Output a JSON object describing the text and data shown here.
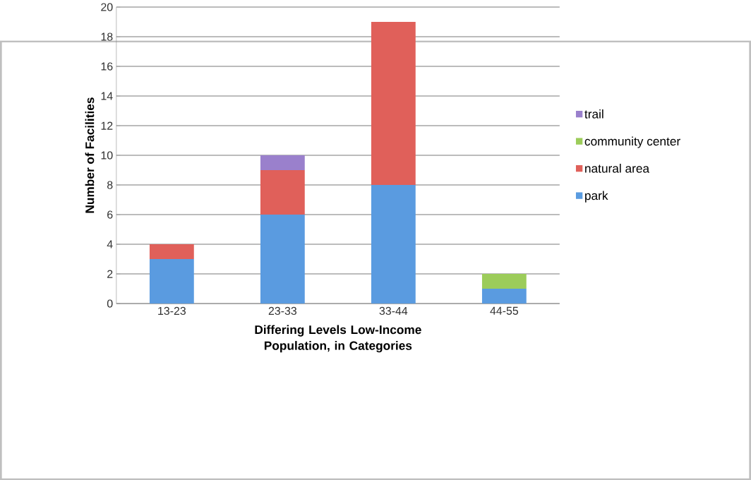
{
  "chart_data": {
    "type": "bar",
    "stacked": true,
    "xlabel": "Differing Levels Low-Income Population, in Categories",
    "ylabel": "Number of Facilities",
    "categories": [
      "13-23",
      "23-33",
      "33-44",
      "44-55"
    ],
    "series": [
      {
        "name": "park",
        "color": "#5a9be0",
        "values": [
          3,
          6,
          8,
          1
        ]
      },
      {
        "name": "natural area",
        "color": "#e0605a",
        "values": [
          1,
          3,
          11,
          0
        ]
      },
      {
        "name": "community center",
        "color": "#9ccc5a",
        "values": [
          0,
          0,
          0,
          1
        ]
      },
      {
        "name": "trail",
        "color": "#9a80cc",
        "values": [
          0,
          1,
          0,
          0
        ]
      }
    ],
    "ylim": [
      0,
      20
    ],
    "yticks": [
      0,
      2,
      4,
      6,
      8,
      10,
      12,
      14,
      16,
      18,
      20
    ],
    "grid": "y",
    "legend": "right"
  }
}
